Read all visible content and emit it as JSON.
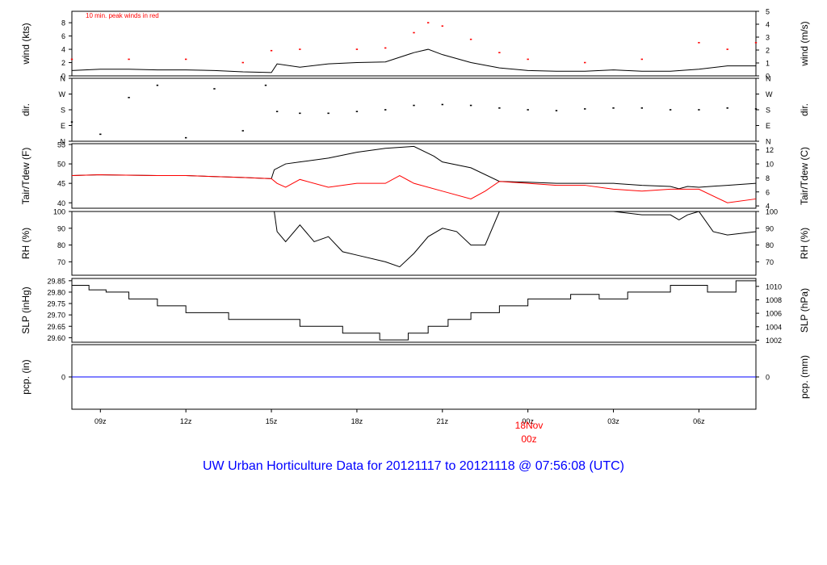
{
  "page": {
    "title": "UW Urban Horticulture Data for 20121117  to  20121118 @ 07:56:08  (UTC)",
    "title_color": "#0000ff",
    "peak_note": "10 min. peak winds in red",
    "date_marker": {
      "day": "18Nov",
      "hour": "00z",
      "color": "#ff0000"
    }
  },
  "colors": {
    "main": "#000000",
    "red": "#ff0000",
    "blue": "#0000ff"
  },
  "x_axis": {
    "ticks": [
      "09z",
      "12z",
      "15z",
      "18z",
      "21z",
      "00z",
      "03z",
      "06z"
    ],
    "hours": [
      1.0,
      4.0,
      7.0,
      10.0,
      13.0,
      16.0,
      19.0,
      22.0
    ],
    "range_hours": [
      0.0,
      24.0
    ]
  },
  "chart_data": [
    {
      "type": "line",
      "panel": "wind",
      "ylabel_left": "wind (kts)",
      "ylabel_right": "wind (m/s)",
      "ylim": [
        0,
        9.72
      ],
      "yticks_left": [
        "0",
        "2",
        "4",
        "6",
        "8"
      ],
      "yticks_left_values": [
        0,
        2,
        4,
        6,
        8
      ],
      "yticks_right": [
        "0",
        "1",
        "2",
        "3",
        "4",
        "5"
      ],
      "yticks_right_values": [
        0,
        1.944,
        3.888,
        5.832,
        7.776,
        9.72
      ],
      "series": [
        {
          "name": "wind",
          "color": "#000000",
          "x": [
            0,
            1,
            2,
            3,
            4,
            5,
            6,
            7,
            7.2,
            8,
            9,
            10,
            11,
            12,
            12.5,
            13,
            14,
            15,
            16,
            17,
            18,
            19,
            20,
            21,
            22,
            23,
            24
          ],
          "y": [
            0.8,
            1.0,
            1.0,
            0.9,
            0.9,
            0.8,
            0.6,
            0.5,
            1.8,
            1.3,
            1.8,
            2.0,
            2.1,
            3.5,
            4.0,
            3.2,
            2.0,
            1.2,
            0.8,
            0.7,
            0.7,
            0.9,
            0.7,
            0.7,
            1.0,
            1.5,
            1.5
          ]
        },
        {
          "name": "10 min. peak winds",
          "color": "#ff0000",
          "x": [
            0,
            2,
            4,
            6,
            7,
            8,
            10,
            11,
            12,
            12.5,
            13,
            14,
            15,
            16,
            18,
            20,
            22,
            23,
            24
          ],
          "y": [
            2.5,
            2.5,
            2.5,
            2.0,
            3.8,
            4.0,
            4.0,
            4.2,
            6.5,
            8.0,
            7.5,
            5.5,
            3.5,
            2.5,
            2.0,
            2.5,
            5.0,
            4.0,
            5.0
          ]
        }
      ]
    },
    {
      "type": "scatter",
      "panel": "dir",
      "ylabel_left": "dir.",
      "ylabel_right": "dir.",
      "ylim": [
        0,
        360
      ],
      "yticks_left": [
        "N",
        "E",
        "S",
        "W",
        "N"
      ],
      "yticks_left_values": [
        0,
        90,
        180,
        270,
        360
      ],
      "yticks_right": [
        "N",
        "E",
        "S",
        "W",
        "N"
      ],
      "yticks_right_values": [
        0,
        90,
        180,
        270,
        360
      ],
      "series": [
        {
          "name": "direction",
          "color": "#000000",
          "x": [
            0,
            1,
            2,
            3,
            4,
            5,
            6,
            6.8,
            7.2,
            8,
            9,
            10,
            11,
            12,
            13,
            14,
            15,
            16,
            17,
            18,
            19,
            20,
            21,
            22,
            23,
            24
          ],
          "y": [
            110,
            40,
            250,
            320,
            20,
            300,
            60,
            320,
            170,
            160,
            160,
            170,
            180,
            205,
            210,
            205,
            190,
            180,
            175,
            185,
            190,
            190,
            180,
            180,
            190,
            185
          ]
        }
      ]
    },
    {
      "type": "line",
      "panel": "temp",
      "ylabel_left": "Tair/Tdew (F)",
      "ylabel_right": "Tair/Tdew (C)",
      "ylim": [
        38.6,
        55.2
      ],
      "yticks_left": [
        "40",
        "45",
        "50",
        "55"
      ],
      "yticks_left_values": [
        40,
        45,
        50,
        55
      ],
      "yticks_right": [
        "4",
        "6",
        "8",
        "10",
        "12"
      ],
      "yticks_right_values": [
        39.2,
        42.8,
        46.4,
        50.0,
        53.6
      ],
      "series": [
        {
          "name": "Tair",
          "color": "#000000",
          "x": [
            0,
            1,
            3,
            4,
            6,
            7,
            7.1,
            7.5,
            8,
            9,
            10,
            11,
            12,
            12.7,
            13,
            14,
            15,
            16,
            17,
            18,
            19,
            20,
            21,
            21.3,
            21.6,
            22,
            23,
            24
          ],
          "y": [
            47,
            47.2,
            47,
            47,
            46.5,
            46.2,
            48.5,
            50.0,
            50.5,
            51.5,
            53.0,
            54.0,
            54.5,
            52.0,
            50.5,
            49.0,
            45.5,
            45.3,
            45.0,
            45.0,
            45.0,
            44.5,
            44.2,
            43.6,
            44.2,
            44.0,
            44.5,
            45.0
          ]
        },
        {
          "name": "Tdew",
          "color": "#ff0000",
          "x": [
            0,
            1,
            3,
            4,
            6,
            7,
            7.2,
            7.5,
            8,
            9,
            10,
            11,
            11.5,
            12,
            13,
            14,
            14.5,
            15,
            16,
            17,
            18,
            19,
            20,
            21,
            22,
            23,
            24
          ],
          "y": [
            47,
            47.2,
            47,
            47,
            46.5,
            46.2,
            45.0,
            44.0,
            46.0,
            44.0,
            45.0,
            45.0,
            47.0,
            45.0,
            43.0,
            41.0,
            43.0,
            45.5,
            45.0,
            44.5,
            44.5,
            43.5,
            43.0,
            43.5,
            43.5,
            40.0,
            41.0
          ]
        }
      ]
    },
    {
      "type": "line",
      "panel": "rh",
      "ylabel_left": "RH (%)",
      "ylabel_right": "RH (%)",
      "ylim": [
        62,
        100
      ],
      "yticks_left": [
        "70",
        "80",
        "90",
        "100"
      ],
      "yticks_left_values": [
        70,
        80,
        90,
        100
      ],
      "yticks_right": [
        "70",
        "80",
        "90",
        "100"
      ],
      "yticks_right_values": [
        70,
        80,
        90,
        100
      ],
      "series": [
        {
          "name": "RH",
          "color": "#000000",
          "x": [
            7.1,
            7.2,
            7.5,
            8,
            8.5,
            9,
            9.5,
            10,
            11,
            11.5,
            12,
            12.5,
            13,
            13.5,
            14,
            14.5,
            15,
            16,
            18,
            19,
            20,
            21,
            21.3,
            21.6,
            22,
            22.5,
            23,
            24
          ],
          "y": [
            100,
            88,
            82,
            92,
            82,
            85,
            76,
            74,
            70,
            67,
            75,
            85,
            90,
            88,
            80,
            80,
            100,
            100,
            100,
            100,
            98,
            98,
            95,
            98,
            100,
            88,
            86,
            88
          ]
        }
      ]
    },
    {
      "type": "line",
      "panel": "slp",
      "ylabel_left": "SLP (inHg)",
      "ylabel_right": "SLP (hPa)",
      "ylim": [
        29.58,
        29.86
      ],
      "yticks_left": [
        "29.60",
        "29.65",
        "29.70",
        "29.75",
        "29.80",
        "29.85"
      ],
      "yticks_left_values": [
        29.6,
        29.65,
        29.7,
        29.75,
        29.8,
        29.85
      ],
      "yticks_right": [
        "1002",
        "1004",
        "1006",
        "1008",
        "1010"
      ],
      "yticks_right_values": [
        29.589,
        29.6481,
        29.7072,
        29.7662,
        29.8253
      ],
      "series": [
        {
          "name": "SLP",
          "color": "#000000",
          "x": [
            0,
            0.6,
            1.2,
            2.0,
            3.0,
            4.0,
            5.5,
            8.0,
            9.5,
            10.8,
            11.8,
            12.5,
            13.2,
            14.0,
            15.0,
            16.0,
            17.5,
            18.5,
            19.5,
            21.0,
            22.3,
            23.3
          ],
          "y": [
            29.83,
            29.81,
            29.8,
            29.77,
            29.74,
            29.71,
            29.68,
            29.65,
            29.62,
            29.59,
            29.62,
            29.65,
            29.68,
            29.71,
            29.74,
            29.77,
            29.79,
            29.77,
            29.8,
            29.83,
            29.8,
            29.85
          ]
        }
      ]
    },
    {
      "type": "line",
      "panel": "pcp",
      "ylabel_left": "pcp. (in)",
      "ylabel_right": "pcp. (mm)",
      "ylim": [
        -1,
        1
      ],
      "yticks_left": [
        "0"
      ],
      "yticks_left_values": [
        0
      ],
      "yticks_right": [
        "0"
      ],
      "yticks_right_values": [
        0
      ],
      "series": [
        {
          "name": "precip",
          "color": "#0000ff",
          "x": [
            0,
            24
          ],
          "y": [
            0,
            0
          ]
        }
      ]
    }
  ]
}
